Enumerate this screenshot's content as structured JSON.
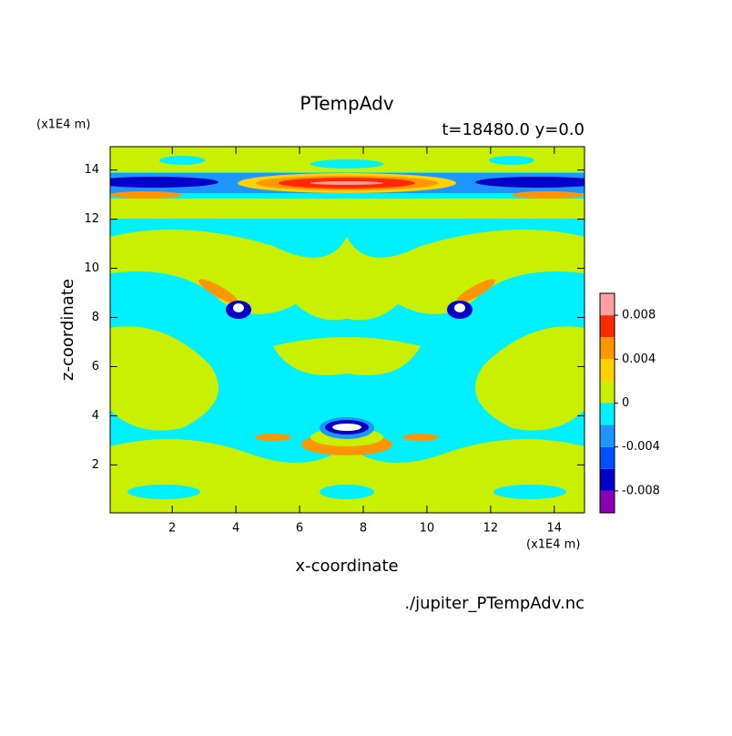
{
  "chart_data": {
    "type": "contour",
    "title": "PTempAdv",
    "subtitle": "t=18480.0 y=0.0",
    "x_label": "x-coordinate",
    "y_label": "z-coordinate",
    "x_unit": "(x1E4 m)",
    "y_unit": "(x1E4 m)",
    "source": "./jupiter_PTempAdv.nc",
    "xlim": [
      0.05,
      14.95
    ],
    "ylim": [
      0.05,
      14.95
    ],
    "xticks": [
      2,
      4,
      6,
      8,
      10,
      12,
      14
    ],
    "yticks": [
      2,
      4,
      6,
      8,
      10,
      12,
      14
    ],
    "colorbar": {
      "levels": [
        -0.01,
        -0.008,
        -0.006,
        -0.004,
        -0.002,
        0,
        0.002,
        0.004,
        0.006,
        0.008,
        0.01
      ],
      "colors": [
        "#8c00b4",
        "#0000c8",
        "#0050ff",
        "#1e96ff",
        "#00f0ff",
        "#c8f000",
        "#ffd200",
        "#ff9600",
        "#ff2800",
        "#ffa0a0"
      ],
      "ticks": [
        -0.008,
        -0.004,
        0,
        0.004,
        0.008
      ]
    }
  }
}
